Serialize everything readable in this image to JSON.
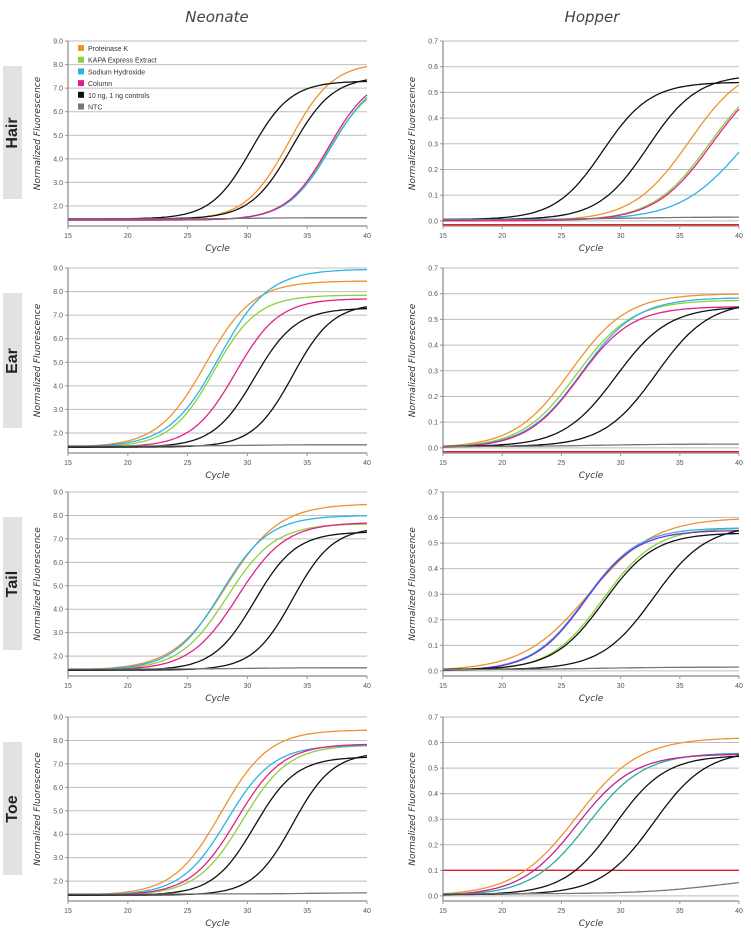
{
  "columns": [
    "Neonate",
    "Hopper"
  ],
  "rows": [
    "Hair",
    "Ear",
    "Tail",
    "Toe"
  ],
  "legend": [
    {
      "label": "Proteinase K",
      "color": "#f0922e"
    },
    {
      "label": "KAPA Express Extract",
      "color": "#8cd13e"
    },
    {
      "label": "Sodium Hydroxide",
      "color": "#2bb3e6"
    },
    {
      "label": "Column",
      "color": "#e0218a"
    },
    {
      "label": "10 ng, 1 ng controls",
      "color": "#111111"
    },
    {
      "label": "NTC",
      "color": "#777777"
    }
  ],
  "threshold_color": "#e02020",
  "chart_data": [
    {
      "type": "line",
      "title": "Neonate — Hair",
      "xlabel": "Cycle",
      "ylabel": "Normalized Fluorescence",
      "xlim": [
        15,
        40
      ],
      "ylim": [
        1.15,
        9.0
      ],
      "xticks": [
        15,
        20,
        25,
        30,
        35,
        40
      ],
      "yticks": [
        2.0,
        3.0,
        4.0,
        5.0,
        6.0,
        7.0,
        8.0,
        9.0
      ],
      "tick_decimals": 1,
      "grid": true,
      "legend": "top-left",
      "series": [
        {
          "name": "Proteinase K",
          "color": "#f0922e",
          "base": 1.4,
          "plateau": 8.1,
          "ct": 33.5,
          "k": 0.55
        },
        {
          "name": "KAPA Express Extract",
          "color": "#8cd13e",
          "base": 1.4,
          "plateau": 7.4,
          "ct": 36.8,
          "k": 0.55
        },
        {
          "name": "Sodium Hydroxide",
          "color": "#2bb3e6",
          "base": 1.4,
          "plateau": 7.6,
          "ct": 37.0,
          "k": 0.55
        },
        {
          "name": "Column",
          "color": "#e0218a",
          "base": 1.4,
          "plateau": 7.6,
          "ct": 36.8,
          "k": 0.56
        },
        {
          "name": "10 ng control",
          "color": "#111111",
          "base": 1.45,
          "plateau": 7.3,
          "ct": 30.3,
          "k": 0.6
        },
        {
          "name": "1 ng control",
          "color": "#111111",
          "base": 1.45,
          "plateau": 7.5,
          "ct": 33.7,
          "k": 0.58
        },
        {
          "name": "NTC",
          "color": "#777777",
          "base": 1.45,
          "plateau": 1.5,
          "ct": 30,
          "k": 0.5
        }
      ]
    },
    {
      "type": "line",
      "title": "Hopper — Hair",
      "xlabel": "Cycle",
      "ylabel": "Normalized Fluorescence",
      "xlim": [
        15,
        40
      ],
      "ylim": [
        -0.02,
        0.7
      ],
      "xticks": [
        15,
        20,
        25,
        30,
        35,
        40
      ],
      "yticks": [
        0.0,
        0.1,
        0.2,
        0.3,
        0.4,
        0.5,
        0.6,
        0.7
      ],
      "tick_decimals": 1,
      "grid": true,
      "threshold": -0.015,
      "series": [
        {
          "name": "Proteinase K",
          "color": "#f0922e",
          "base": 0.0,
          "plateau": 0.62,
          "ct": 35.8,
          "k": 0.42
        },
        {
          "name": "KAPA Express Extract",
          "color": "#8cd13e",
          "base": 0.0,
          "plateau": 0.6,
          "ct": 37.5,
          "k": 0.42
        },
        {
          "name": "Sodium Hydroxide",
          "color": "#2bb3e6",
          "base": 0.005,
          "plateau": 0.55,
          "ct": 40.2,
          "k": 0.38
        },
        {
          "name": "Column",
          "color": "#e0218a",
          "base": 0.0,
          "plateau": 0.6,
          "ct": 37.7,
          "k": 0.42
        },
        {
          "name": "10 ng control",
          "color": "#111111",
          "base": 0.005,
          "plateau": 0.54,
          "ct": 28.5,
          "k": 0.5
        },
        {
          "name": "1 ng control",
          "color": "#111111",
          "base": 0.005,
          "plateau": 0.57,
          "ct": 32.3,
          "k": 0.48
        },
        {
          "name": "NTC",
          "color": "#777777",
          "base": 0.005,
          "plateau": 0.015,
          "ct": 30,
          "k": 0.3
        }
      ]
    },
    {
      "type": "line",
      "title": "Neonate — Ear",
      "xlabel": "Cycle",
      "ylabel": "Normalized Fluorescence",
      "xlim": [
        15,
        40
      ],
      "ylim": [
        1.15,
        9.0
      ],
      "xticks": [
        15,
        20,
        25,
        30,
        35,
        40
      ],
      "yticks": [
        2.0,
        3.0,
        4.0,
        5.0,
        6.0,
        7.0,
        8.0,
        9.0
      ],
      "tick_decimals": 1,
      "grid": true,
      "series": [
        {
          "name": "Proteinase K",
          "color": "#f0922e",
          "base": 1.4,
          "plateau": 8.45,
          "ct": 26.5,
          "k": 0.5
        },
        {
          "name": "KAPA Express Extract",
          "color": "#8cd13e",
          "base": 1.4,
          "plateau": 7.85,
          "ct": 27.2,
          "k": 0.55
        },
        {
          "name": "Sodium Hydroxide",
          "color": "#2bb3e6",
          "base": 1.4,
          "plateau": 8.95,
          "ct": 27.6,
          "k": 0.48
        },
        {
          "name": "Column",
          "color": "#e0218a",
          "base": 1.4,
          "plateau": 7.7,
          "ct": 29.0,
          "k": 0.55
        },
        {
          "name": "10 ng control",
          "color": "#111111",
          "base": 1.4,
          "plateau": 7.3,
          "ct": 30.6,
          "k": 0.58
        },
        {
          "name": "1 ng control",
          "color": "#111111",
          "base": 1.4,
          "plateau": 7.5,
          "ct": 33.8,
          "k": 0.6
        },
        {
          "name": "NTC",
          "color": "#777777",
          "base": 1.45,
          "plateau": 1.5,
          "ct": 30,
          "k": 0.5
        }
      ]
    },
    {
      "type": "line",
      "title": "Hopper — Ear",
      "xlabel": "Cycle",
      "ylabel": "Normalized Fluorescence",
      "xlim": [
        15,
        40
      ],
      "ylim": [
        -0.02,
        0.7
      ],
      "xticks": [
        15,
        20,
        25,
        30,
        35,
        40
      ],
      "yticks": [
        0.0,
        0.1,
        0.2,
        0.3,
        0.4,
        0.5,
        0.6,
        0.7
      ],
      "tick_decimals": 1,
      "grid": true,
      "threshold": -0.015,
      "series": [
        {
          "name": "Proteinase K",
          "color": "#f0922e",
          "base": 0.0,
          "plateau": 0.6,
          "ct": 25.8,
          "k": 0.42
        },
        {
          "name": "KAPA Express Extract",
          "color": "#8cd13e",
          "base": 0.0,
          "plateau": 0.575,
          "ct": 26.3,
          "k": 0.43
        },
        {
          "name": "Sodium Hydroxide",
          "color": "#2bb3e6",
          "base": 0.0,
          "plateau": 0.585,
          "ct": 26.7,
          "k": 0.43
        },
        {
          "name": "Column",
          "color": "#e0218a",
          "base": 0.0,
          "plateau": 0.55,
          "ct": 26.5,
          "k": 0.45
        },
        {
          "name": "10 ng control",
          "color": "#111111",
          "base": 0.005,
          "plateau": 0.55,
          "ct": 29.6,
          "k": 0.45
        },
        {
          "name": "1 ng control",
          "color": "#111111",
          "base": 0.005,
          "plateau": 0.57,
          "ct": 33.0,
          "k": 0.45
        },
        {
          "name": "NTC",
          "color": "#777777",
          "base": 0.005,
          "plateau": 0.015,
          "ct": 28,
          "k": 0.3
        }
      ]
    },
    {
      "type": "line",
      "title": "Neonate — Tail",
      "xlabel": "Cycle",
      "ylabel": "Normalized Fluorescence",
      "xlim": [
        15,
        40
      ],
      "ylim": [
        1.15,
        9.0
      ],
      "xticks": [
        15,
        20,
        25,
        30,
        35,
        40
      ],
      "yticks": [
        2.0,
        3.0,
        4.0,
        5.0,
        6.0,
        7.0,
        8.0,
        9.0
      ],
      "tick_decimals": 1,
      "grid": true,
      "series": [
        {
          "name": "Proteinase K",
          "color": "#f0922e",
          "base": 1.4,
          "plateau": 8.5,
          "ct": 28.2,
          "k": 0.45
        },
        {
          "name": "KAPA Express Extract",
          "color": "#8cd13e",
          "base": 1.4,
          "plateau": 7.65,
          "ct": 28.3,
          "k": 0.5
        },
        {
          "name": "Sodium Hydroxide",
          "color": "#2bb3e6",
          "base": 1.4,
          "plateau": 8.0,
          "ct": 27.8,
          "k": 0.5
        },
        {
          "name": "Column",
          "color": "#e0218a",
          "base": 1.4,
          "plateau": 7.7,
          "ct": 29.2,
          "k": 0.5
        },
        {
          "name": "10 ng control",
          "color": "#111111",
          "base": 1.4,
          "plateau": 7.3,
          "ct": 30.6,
          "k": 0.58
        },
        {
          "name": "1 ng control",
          "color": "#111111",
          "base": 1.4,
          "plateau": 7.5,
          "ct": 33.8,
          "k": 0.6
        },
        {
          "name": "NTC",
          "color": "#777777",
          "base": 1.45,
          "plateau": 1.5,
          "ct": 30,
          "k": 0.5
        }
      ]
    },
    {
      "type": "line",
      "title": "Hopper — Tail",
      "xlabel": "Cycle",
      "ylabel": "Normalized Fluorescence",
      "xlim": [
        15,
        40
      ],
      "ylim": [
        -0.02,
        0.7
      ],
      "xticks": [
        15,
        20,
        25,
        30,
        35,
        40
      ],
      "yticks": [
        0.0,
        0.1,
        0.2,
        0.3,
        0.4,
        0.5,
        0.6,
        0.7
      ],
      "tick_decimals": 1,
      "grid": true,
      "series": [
        {
          "name": "Proteinase K",
          "color": "#f0922e",
          "base": 0.0,
          "plateau": 0.6,
          "ct": 27.3,
          "k": 0.36
        },
        {
          "name": "KAPA Express Extract",
          "color": "#8cd13e",
          "base": 0.0,
          "plateau": 0.56,
          "ct": 28.5,
          "k": 0.45
        },
        {
          "name": "Sodium Hydroxide",
          "color": "#2bb3e6",
          "base": 0.0,
          "plateau": 0.56,
          "ct": 27.0,
          "k": 0.45
        },
        {
          "name": "Column",
          "color": "#7a2fd0",
          "base": 0.0,
          "plateau": 0.55,
          "ct": 27.0,
          "k": 0.46
        },
        {
          "name": "10 ng control",
          "color": "#111111",
          "base": 0.005,
          "plateau": 0.54,
          "ct": 28.6,
          "k": 0.47
        },
        {
          "name": "1 ng control",
          "color": "#111111",
          "base": 0.005,
          "plateau": 0.57,
          "ct": 32.8,
          "k": 0.45
        },
        {
          "name": "NTC",
          "color": "#777777",
          "base": 0.005,
          "plateau": 0.015,
          "ct": 28,
          "k": 0.3
        }
      ]
    },
    {
      "type": "line",
      "title": "Neonate — Toe",
      "xlabel": "Cycle",
      "ylabel": "Normalized Fluorescence",
      "xlim": [
        15,
        40
      ],
      "ylim": [
        1.15,
        9.0
      ],
      "xticks": [
        15,
        20,
        25,
        30,
        35,
        40
      ],
      "yticks": [
        2.0,
        3.0,
        4.0,
        5.0,
        6.0,
        7.0,
        8.0,
        9.0
      ],
      "tick_decimals": 1,
      "grid": true,
      "series": [
        {
          "name": "Proteinase K",
          "color": "#f0922e",
          "base": 1.4,
          "plateau": 8.45,
          "ct": 27.8,
          "k": 0.5
        },
        {
          "name": "KAPA Express Extract",
          "color": "#8cd13e",
          "base": 1.4,
          "plateau": 7.8,
          "ct": 29.6,
          "k": 0.52
        },
        {
          "name": "Sodium Hydroxide",
          "color": "#2bb3e6",
          "base": 1.4,
          "plateau": 7.8,
          "ct": 28.3,
          "k": 0.52
        },
        {
          "name": "Column",
          "color": "#e0218a",
          "base": 1.4,
          "plateau": 7.85,
          "ct": 29.1,
          "k": 0.52
        },
        {
          "name": "10 ng control",
          "color": "#111111",
          "base": 1.4,
          "plateau": 7.3,
          "ct": 30.6,
          "k": 0.58
        },
        {
          "name": "1 ng control",
          "color": "#111111",
          "base": 1.4,
          "plateau": 7.5,
          "ct": 33.8,
          "k": 0.6
        },
        {
          "name": "NTC",
          "color": "#777777",
          "base": 1.45,
          "plateau": 1.5,
          "ct": 35,
          "k": 0.5
        }
      ]
    },
    {
      "type": "line",
      "title": "Hopper — Toe",
      "xlabel": "Cycle",
      "ylabel": "Normalized Fluorescence",
      "xlim": [
        15,
        40
      ],
      "ylim": [
        -0.02,
        0.7
      ],
      "xticks": [
        15,
        20,
        25,
        30,
        35,
        40
      ],
      "yticks": [
        0.0,
        0.1,
        0.2,
        0.3,
        0.4,
        0.5,
        0.6,
        0.7
      ],
      "tick_decimals": 1,
      "grid": true,
      "threshold": 0.1,
      "series": [
        {
          "name": "Proteinase K",
          "color": "#f0922e",
          "base": 0.0,
          "plateau": 0.62,
          "ct": 26.3,
          "k": 0.38
        },
        {
          "name": "Sodium Hydroxide",
          "color": "#2aa9a0",
          "base": 0.0,
          "plateau": 0.56,
          "ct": 27.2,
          "k": 0.42
        },
        {
          "name": "Column",
          "color": "#c0209a",
          "base": 0.0,
          "plateau": 0.555,
          "ct": 26.3,
          "k": 0.42
        },
        {
          "name": "10 ng control",
          "color": "#111111",
          "base": 0.005,
          "plateau": 0.55,
          "ct": 29.5,
          "k": 0.47
        },
        {
          "name": "1 ng control",
          "color": "#111111",
          "base": 0.005,
          "plateau": 0.57,
          "ct": 32.8,
          "k": 0.45
        },
        {
          "name": "NTC",
          "color": "#777777",
          "base": 0.008,
          "plateau": 0.08,
          "ct": 38.5,
          "k": 0.3
        }
      ]
    }
  ]
}
